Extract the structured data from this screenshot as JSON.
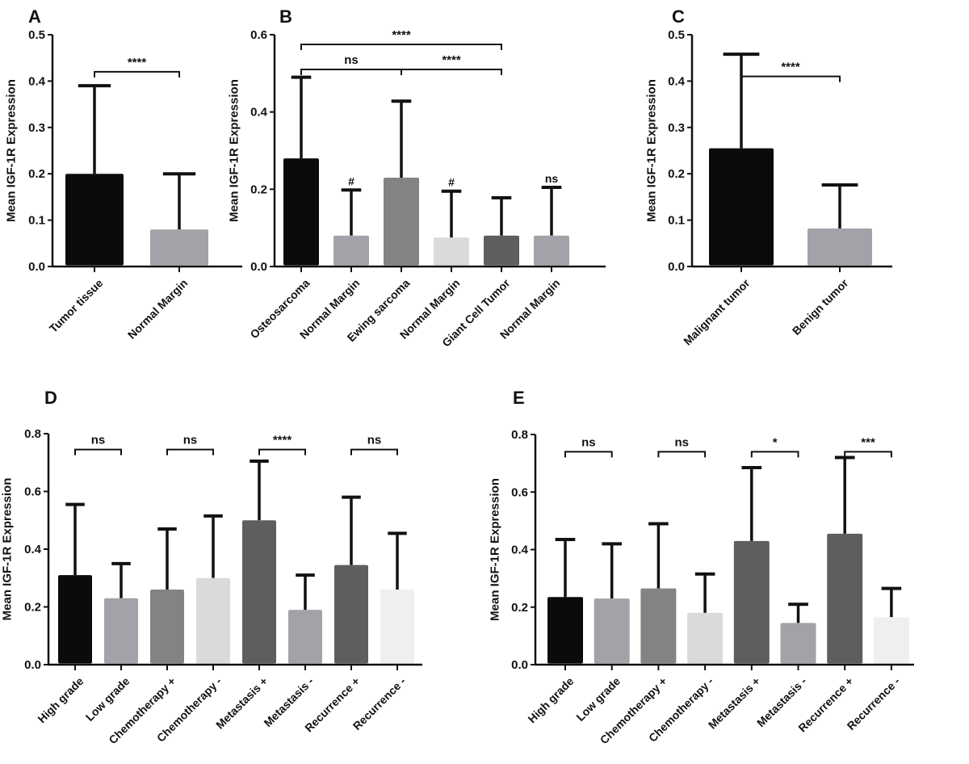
{
  "chart_data": [
    {
      "panel": "A",
      "type": "bar",
      "ylabel": "Mean IGF-1R Expression",
      "ylim": [
        0,
        0.5
      ],
      "yticks": [
        "0.0",
        "0.1",
        "0.2",
        "0.3",
        "0.4",
        "0.5"
      ],
      "categories": [
        "Tumor tissue",
        "Normal Margin"
      ],
      "values": [
        0.2,
        0.08
      ],
      "error_upper": [
        0.39,
        0.2
      ],
      "colors": [
        "#0b0b0b",
        "#a2a2a8"
      ],
      "annotations": [],
      "brackets": [
        {
          "from": 0,
          "to": 1,
          "y": 0.42,
          "label": "****"
        }
      ]
    },
    {
      "panel": "B",
      "type": "bar",
      "ylabel": "Mean IGF-1R Expression",
      "ylim": [
        0,
        0.6
      ],
      "yticks": [
        "0.0",
        "0.2",
        "0.4",
        "0.6"
      ],
      "categories": [
        "Osteosarcoma",
        "Normal Margin",
        "Ewing sarcoma",
        "Normal Margin",
        "Giant Cell Tumor",
        "Normal Margin"
      ],
      "values": [
        0.28,
        0.08,
        0.23,
        0.075,
        0.08,
        0.08
      ],
      "error_upper": [
        0.49,
        0.198,
        0.428,
        0.195,
        0.178,
        0.205
      ],
      "colors": [
        "#0b0b0b",
        "#a2a2a8",
        "#838383",
        "#dadada",
        "#5e5e5e",
        "#a2a2a8"
      ],
      "annotations": [
        "",
        "#",
        "",
        "#",
        "",
        "ns"
      ],
      "brackets": [
        {
          "from": 0,
          "to": 4,
          "y": 0.575,
          "label": "****"
        },
        {
          "from": 0,
          "to": 2,
          "y": 0.51,
          "label": "ns"
        },
        {
          "from": 2,
          "to": 4,
          "y": 0.51,
          "label": "****"
        }
      ]
    },
    {
      "panel": "C",
      "type": "bar",
      "ylabel": "Mean IGF-1R Expression",
      "ylim": [
        0,
        0.5
      ],
      "yticks": [
        "0.0",
        "0.1",
        "0.2",
        "0.3",
        "0.4",
        "0.5"
      ],
      "categories": [
        "Malignant tumor",
        "Benign tumor"
      ],
      "values": [
        0.255,
        0.082
      ],
      "error_upper": [
        0.458,
        0.176
      ],
      "colors": [
        "#0b0b0b",
        "#a2a2a8"
      ],
      "annotations": [],
      "brackets": [
        {
          "from": 0,
          "to": 1,
          "y": 0.41,
          "label": "****"
        }
      ]
    },
    {
      "panel": "D",
      "type": "bar",
      "ylabel": "Mean IGF-1R Expression",
      "ylim": [
        0,
        0.8
      ],
      "yticks": [
        "0.0",
        "0.2",
        "0.4",
        "0.6",
        "0.8"
      ],
      "categories": [
        "High grade",
        "Low grade",
        "Chemotherapy +",
        "Chemotherapy -",
        "Metastasis +",
        "Metastasis -",
        "Recurrence +",
        "Recurrence -"
      ],
      "values": [
        0.31,
        0.23,
        0.26,
        0.3,
        0.5,
        0.19,
        0.345,
        0.26
      ],
      "error_upper": [
        0.555,
        0.35,
        0.47,
        0.515,
        0.705,
        0.31,
        0.58,
        0.455
      ],
      "colors": [
        "#0b0b0b",
        "#a2a2a8",
        "#838383",
        "#dadada",
        "#5e5e5e",
        "#a2a2a8",
        "#5e5e5e",
        "#efefef"
      ],
      "annotations": [],
      "brackets": [
        {
          "from": 0,
          "to": 1,
          "y": 0.745,
          "label": "ns"
        },
        {
          "from": 2,
          "to": 3,
          "y": 0.745,
          "label": "ns"
        },
        {
          "from": 4,
          "to": 5,
          "y": 0.745,
          "label": "****"
        },
        {
          "from": 6,
          "to": 7,
          "y": 0.745,
          "label": "ns"
        }
      ]
    },
    {
      "panel": "E",
      "type": "bar",
      "ylabel": "Mean IGF-1R Expression",
      "ylim": [
        0,
        0.8
      ],
      "yticks": [
        "0.0",
        "0.2",
        "0.4",
        "0.6",
        "0.8"
      ],
      "categories": [
        "High grade",
        "Low grade",
        "Chemotherapy +",
        "Chemotherapy -",
        "Metastasis +",
        "Metastasis -",
        "Recurrence +",
        "Recurrence -"
      ],
      "values": [
        0.235,
        0.23,
        0.265,
        0.18,
        0.43,
        0.145,
        0.455,
        0.165
      ],
      "error_upper": [
        0.435,
        0.42,
        0.49,
        0.315,
        0.685,
        0.21,
        0.72,
        0.265
      ],
      "colors": [
        "#0b0b0b",
        "#a2a2a8",
        "#838383",
        "#dadada",
        "#5e5e5e",
        "#a2a2a8",
        "#5e5e5e",
        "#efefef"
      ],
      "annotations": [],
      "brackets": [
        {
          "from": 0,
          "to": 1,
          "y": 0.74,
          "label": "ns"
        },
        {
          "from": 2,
          "to": 3,
          "y": 0.74,
          "label": "ns"
        },
        {
          "from": 4,
          "to": 5,
          "y": 0.74,
          "label": "*"
        },
        {
          "from": 6,
          "to": 7,
          "y": 0.74,
          "label": "***"
        }
      ]
    }
  ]
}
